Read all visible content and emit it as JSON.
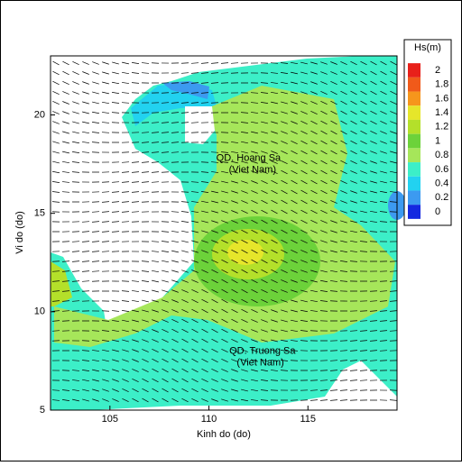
{
  "chart_data": {
    "type": "contour",
    "xlabel": "Kinh do (do)",
    "ylabel": "Vi do (do)",
    "xlim": [
      102,
      119.5
    ],
    "ylim": [
      5,
      23
    ],
    "xticks": [
      105,
      110,
      115
    ],
    "yticks": [
      5,
      10,
      15,
      20
    ],
    "colorbar": {
      "title": "Hs(m)",
      "levels": [
        2,
        1.8,
        1.6,
        1.4,
        1.2,
        1,
        0.8,
        0.6,
        0.4,
        0.2,
        0
      ],
      "colors": [
        "#e8201a",
        "#f05a1a",
        "#f6961c",
        "#e6e62a",
        "#b4e02a",
        "#6cd23a",
        "#a6e65a",
        "#3cefc8",
        "#22d2f0",
        "#3c9af0",
        "#1428e0"
      ]
    },
    "annotations": [
      {
        "text": "QD. Hoang Sa",
        "x": 112,
        "y": 17.8
      },
      {
        "text": "(Viet Nam)",
        "x": 112.2,
        "y": 17.2
      },
      {
        "text": "QD. Truong Sa",
        "x": 112.7,
        "y": 8
      },
      {
        "text": "(Viet Nam)",
        "x": 112.6,
        "y": 7.4
      }
    ]
  }
}
